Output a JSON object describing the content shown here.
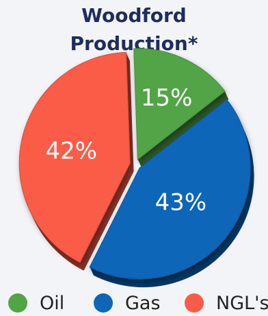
{
  "chart_data": {
    "type": "pie",
    "title_lines": [
      "Woodford",
      "Production*"
    ],
    "slices": [
      {
        "label": "Oil",
        "value": 15,
        "display": "15%",
        "color": "#52a447"
      },
      {
        "label": "Gas",
        "value": 43,
        "display": "43%",
        "color": "#0d66b8"
      },
      {
        "label": "NGL's",
        "value": 42,
        "display": "42%",
        "color": "#fb5b47"
      }
    ],
    "legend": {
      "placement": "bottom"
    }
  }
}
